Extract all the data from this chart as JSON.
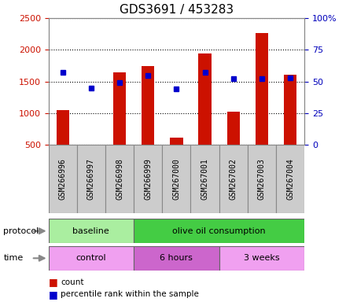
{
  "title": "GDS3691 / 453283",
  "samples": [
    "GSM266996",
    "GSM266997",
    "GSM266998",
    "GSM266999",
    "GSM267000",
    "GSM267001",
    "GSM267002",
    "GSM267003",
    "GSM267004"
  ],
  "counts": [
    1050,
    510,
    1650,
    1740,
    620,
    1940,
    1030,
    2270,
    1610
  ],
  "percentile_ranks": [
    57,
    45,
    49,
    55,
    44,
    57,
    52,
    52,
    53
  ],
  "y_min": 500,
  "y_max": 2500,
  "y_ticks": [
    500,
    1000,
    1500,
    2000,
    2500
  ],
  "y_right_ticks": [
    0,
    25,
    50,
    75,
    100
  ],
  "bar_color": "#cc1100",
  "dot_color": "#0000cc",
  "protocol_groups": [
    {
      "label": "baseline",
      "start": 0,
      "end": 3,
      "color": "#aaeea0"
    },
    {
      "label": "olive oil consumption",
      "start": 3,
      "end": 9,
      "color": "#44cc44"
    }
  ],
  "time_groups": [
    {
      "label": "control",
      "start": 0,
      "end": 3,
      "color": "#f0a0f0"
    },
    {
      "label": "6 hours",
      "start": 3,
      "end": 6,
      "color": "#cc66cc"
    },
    {
      "label": "3 weeks",
      "start": 6,
      "end": 9,
      "color": "#f0a0f0"
    }
  ],
  "legend_items": [
    {
      "label": "count",
      "color": "#cc1100"
    },
    {
      "label": "percentile rank within the sample",
      "color": "#0000cc"
    }
  ],
  "title_fontsize": 11,
  "axis_label_color_left": "#cc1100",
  "axis_label_color_right": "#0000bb",
  "background_color": "#ffffff"
}
